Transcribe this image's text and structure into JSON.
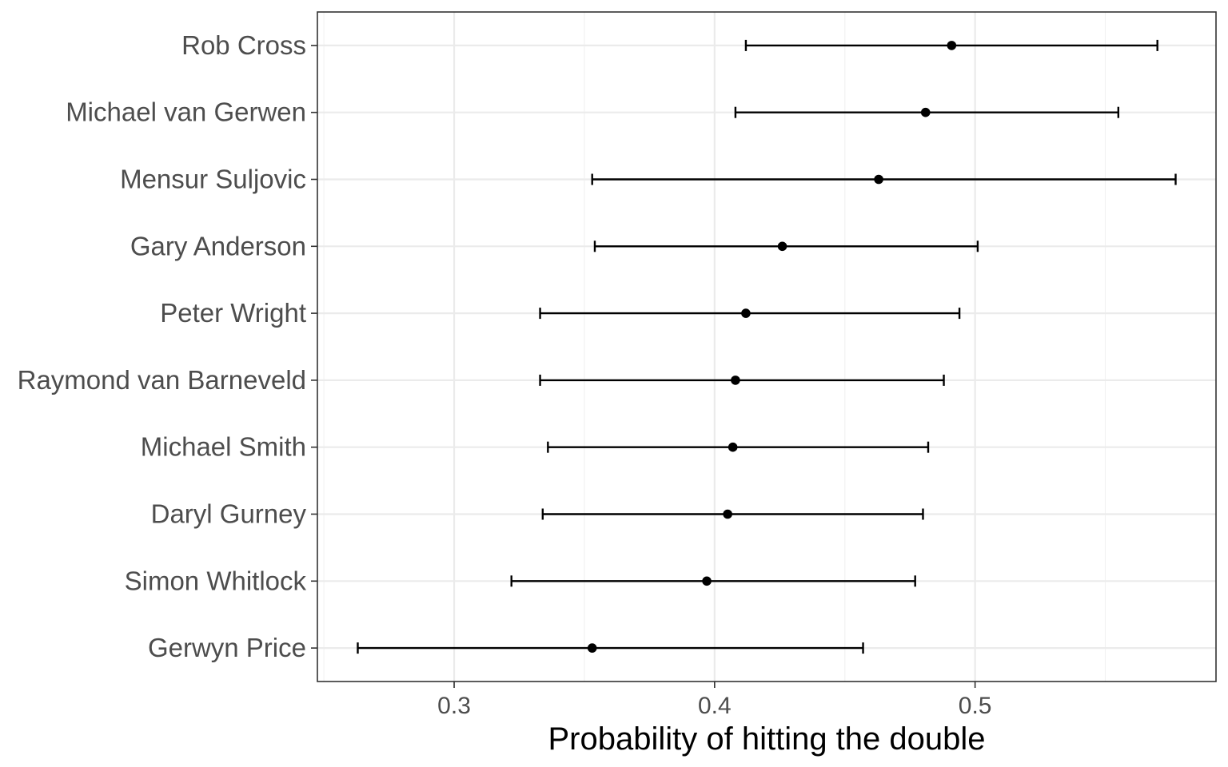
{
  "chart_data": {
    "type": "errorbar",
    "xlabel": "Probability of hitting the double",
    "ylabel": "",
    "xlim": [
      0.2475,
      0.5925
    ],
    "x_ticks": [
      0.3,
      0.4,
      0.5
    ],
    "x_tick_labels": [
      "0.3",
      "0.4",
      "0.5"
    ],
    "grid": true,
    "players": [
      {
        "name": "Rob Cross",
        "estimate": 0.491,
        "lower": 0.412,
        "upper": 0.57
      },
      {
        "name": "Michael van Gerwen",
        "estimate": 0.481,
        "lower": 0.408,
        "upper": 0.555
      },
      {
        "name": "Mensur Suljovic",
        "estimate": 0.463,
        "lower": 0.353,
        "upper": 0.577
      },
      {
        "name": "Gary Anderson",
        "estimate": 0.426,
        "lower": 0.354,
        "upper": 0.501
      },
      {
        "name": "Peter Wright",
        "estimate": 0.412,
        "lower": 0.333,
        "upper": 0.494
      },
      {
        "name": "Raymond van Barneveld",
        "estimate": 0.408,
        "lower": 0.333,
        "upper": 0.488
      },
      {
        "name": "Michael Smith",
        "estimate": 0.407,
        "lower": 0.336,
        "upper": 0.482
      },
      {
        "name": "Daryl Gurney",
        "estimate": 0.405,
        "lower": 0.334,
        "upper": 0.48
      },
      {
        "name": "Simon Whitlock",
        "estimate": 0.397,
        "lower": 0.322,
        "upper": 0.477
      },
      {
        "name": "Gerwyn Price",
        "estimate": 0.353,
        "lower": 0.263,
        "upper": 0.457
      }
    ]
  },
  "colors": {
    "panel_border": "#333333",
    "grid_major": "#ebebeb",
    "grid_minor": "#f2f2f2",
    "marks": "#000000",
    "tick_text": "#4d4d4d"
  }
}
